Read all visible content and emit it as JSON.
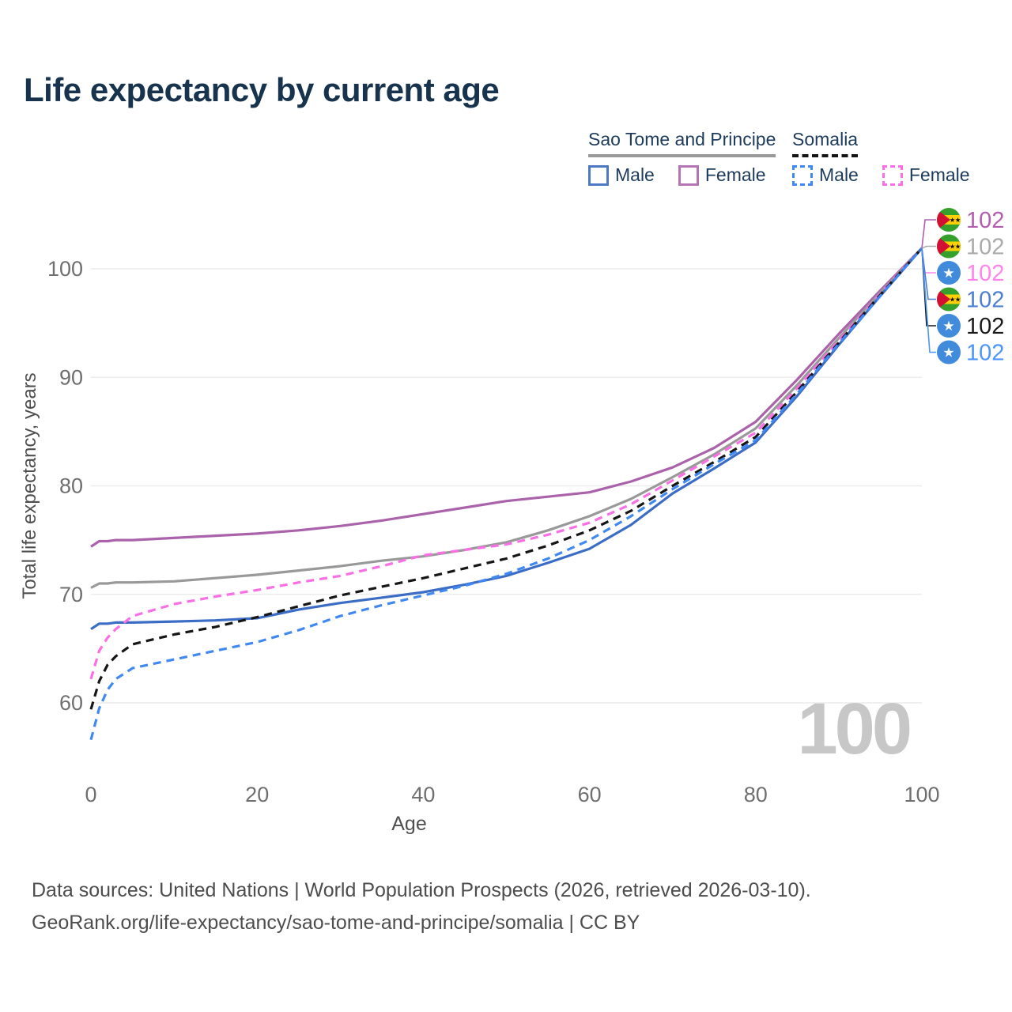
{
  "title": "Life expectancy by current age",
  "legend": {
    "group1": {
      "title": "Sao Tome and Principe",
      "line_style": "solid",
      "underline_color": "#999999",
      "items": [
        {
          "label": "Male",
          "color": "#4f78c4"
        },
        {
          "label": "Female",
          "color": "#b575b5"
        }
      ]
    },
    "group2": {
      "title": "Somalia",
      "line_style": "dashed",
      "underline_color": "#141414",
      "items": [
        {
          "label": "Male",
          "color": "#4089f2"
        },
        {
          "label": "Female",
          "color": "#fb6fe6"
        }
      ]
    }
  },
  "chart_data": {
    "type": "line",
    "title": "Life expectancy by current age",
    "xlabel": "Age",
    "ylabel": "Total life expectancy, years",
    "xlim": [
      0,
      100
    ],
    "ylim": [
      60,
      100
    ],
    "xticks": [
      0,
      20,
      40,
      60,
      80,
      100
    ],
    "yticks": [
      60,
      70,
      80,
      90,
      100
    ],
    "grid": "horizontal",
    "watermark": "100",
    "x": [
      0,
      1,
      2,
      3,
      5,
      10,
      15,
      20,
      25,
      30,
      35,
      40,
      45,
      50,
      55,
      60,
      65,
      70,
      75,
      80,
      85,
      90,
      95,
      100
    ],
    "series": [
      {
        "name": "Sao Tome and Principe Female",
        "color": "#aa63ab",
        "dash": false,
        "values": [
          74.4,
          74.9,
          74.9,
          75.0,
          75.0,
          75.2,
          75.4,
          75.6,
          75.9,
          76.3,
          76.8,
          77.4,
          78.0,
          78.6,
          79.0,
          79.4,
          80.4,
          81.7,
          83.5,
          85.9,
          89.8,
          94.0,
          98.0,
          101.9
        ]
      },
      {
        "name": "Sao Tome and Principe Both sexes",
        "color": "#999999",
        "dash": false,
        "values": [
          70.6,
          71.0,
          71.0,
          71.1,
          71.1,
          71.2,
          71.5,
          71.8,
          72.2,
          72.6,
          73.1,
          73.5,
          74.1,
          74.8,
          75.9,
          77.2,
          78.8,
          80.8,
          82.9,
          85.3,
          89.3,
          93.6,
          97.8,
          101.9
        ]
      },
      {
        "name": "Sao Tome and Principe Male",
        "color": "#3c6dc5",
        "dash": false,
        "values": [
          66.8,
          67.3,
          67.3,
          67.4,
          67.4,
          67.5,
          67.6,
          67.8,
          68.6,
          69.2,
          69.7,
          70.2,
          70.9,
          71.7,
          72.9,
          74.2,
          76.4,
          79.3,
          81.6,
          84.0,
          88.3,
          93.0,
          97.5,
          101.9
        ]
      },
      {
        "name": "Somalia Female",
        "color": "#fb6fe6",
        "dash": true,
        "values": [
          62.2,
          64.8,
          66.0,
          66.8,
          68.0,
          69.1,
          69.8,
          70.4,
          71.1,
          71.7,
          72.6,
          73.6,
          74.1,
          74.6,
          75.5,
          76.6,
          78.3,
          80.5,
          82.7,
          84.9,
          89.0,
          93.4,
          97.7,
          101.9
        ]
      },
      {
        "name": "Somalia Both sexes",
        "color": "#161616",
        "dash": true,
        "values": [
          59.4,
          62.0,
          63.5,
          64.3,
          65.4,
          66.3,
          67.0,
          67.9,
          68.9,
          69.9,
          70.7,
          71.5,
          72.4,
          73.3,
          74.5,
          75.9,
          77.7,
          80.0,
          82.2,
          84.5,
          88.7,
          93.2,
          97.6,
          101.9
        ]
      },
      {
        "name": "Somalia Male",
        "color": "#4089f2",
        "dash": true,
        "values": [
          56.6,
          59.5,
          61.2,
          62.2,
          63.2,
          64.0,
          64.8,
          65.6,
          66.7,
          68.0,
          69.0,
          69.9,
          70.8,
          71.9,
          73.3,
          75.0,
          77.2,
          79.7,
          82.0,
          84.2,
          88.5,
          93.1,
          97.5,
          101.9
        ]
      }
    ],
    "end_labels": [
      {
        "value": "102",
        "flag": "sao-tome-and-principe",
        "color": "#b25daf"
      },
      {
        "value": "102",
        "flag": "sao-tome-and-principe",
        "color": "#aaaaaa"
      },
      {
        "value": "102",
        "flag": "somalia",
        "color": "#ff85ec"
      },
      {
        "value": "102",
        "flag": "sao-tome-and-principe",
        "color": "#4a7fd1"
      },
      {
        "value": "102",
        "flag": "somalia",
        "color": "#1a1a1a"
      },
      {
        "value": "102",
        "flag": "somalia",
        "color": "#4b96f8"
      }
    ]
  },
  "footer": {
    "line1": "Data sources: United Nations | World Population Prospects (2026, retrieved 2026-03-10).",
    "line2": "GeoRank.org/life-expectancy/sao-tome-and-principe/somalia | CC BY"
  }
}
